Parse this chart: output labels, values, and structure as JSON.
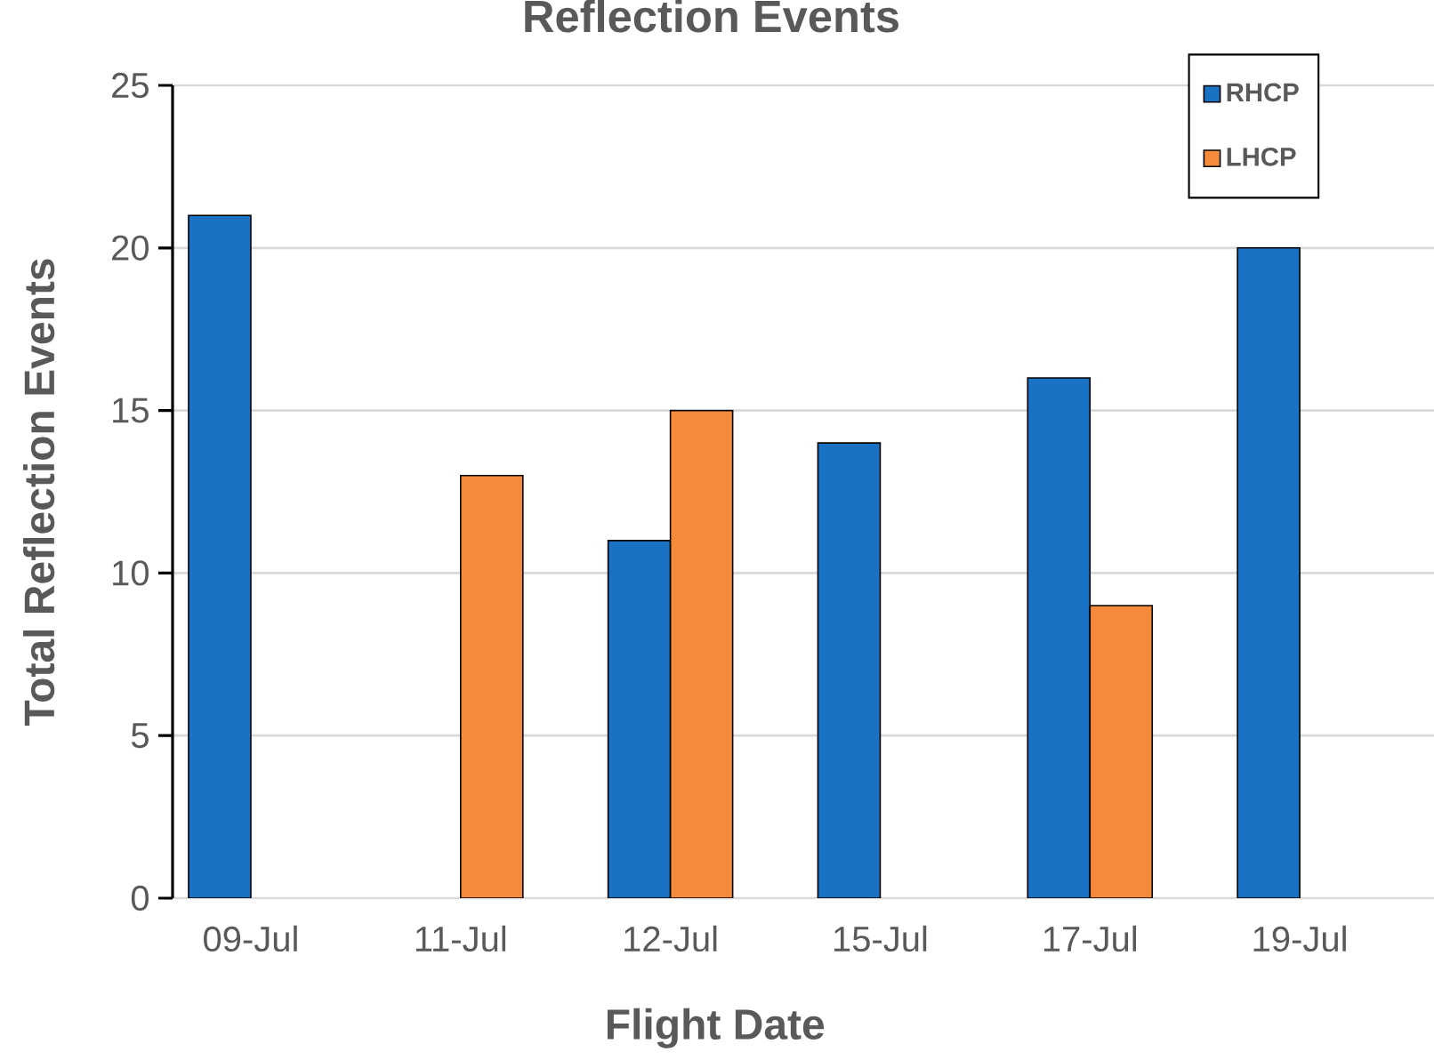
{
  "chart_data": {
    "type": "bar",
    "title": "Reflection Events",
    "xlabel": "Flight Date",
    "ylabel": "Total Reflection Events",
    "categories": [
      "09-Jul",
      "11-Jul",
      "12-Jul",
      "15-Jul",
      "17-Jul",
      "19-Jul"
    ],
    "series": [
      {
        "name": "RHCP",
        "color": "#1a72c4",
        "values": [
          21,
          null,
          11,
          14,
          16,
          20
        ]
      },
      {
        "name": "LHCP",
        "color": "#f58a3b",
        "values": [
          null,
          13,
          15,
          null,
          9,
          null
        ]
      }
    ],
    "ylim": [
      0,
      25
    ],
    "yticks": [
      0,
      5,
      10,
      15,
      20,
      25
    ],
    "grid": "y",
    "legend": "top right"
  }
}
